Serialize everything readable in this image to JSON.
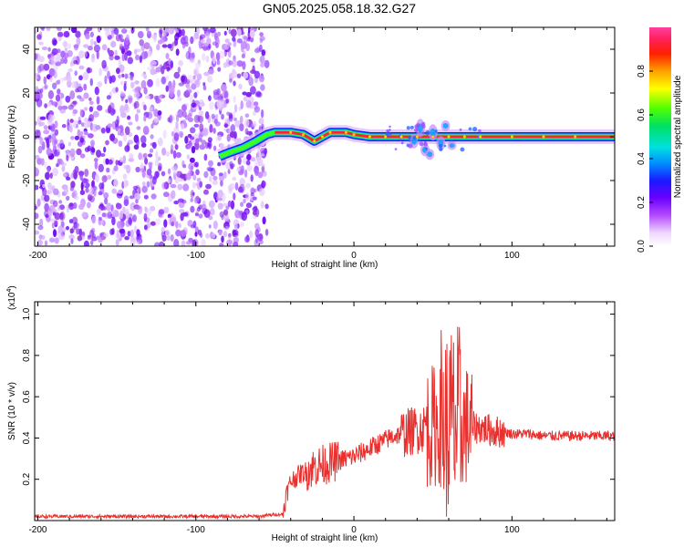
{
  "title": "GN05.2025.058.18.32.G27",
  "chart_data": [
    {
      "type": "heatmap",
      "xlabel": "Height of straight line (km)",
      "ylabel": "Frequency (Hz)",
      "xlim": [
        -202,
        165
      ],
      "ylim": [
        -50,
        50
      ],
      "xticks": [
        -200,
        -100,
        0,
        100
      ],
      "yticks": [
        -40,
        -20,
        0,
        20,
        40
      ],
      "noise_region_x": [
        -202,
        -55
      ],
      "ridge": [
        {
          "x": -85,
          "y": -9
        },
        {
          "x": -78,
          "y": -7
        },
        {
          "x": -70,
          "y": -5
        },
        {
          "x": -62,
          "y": -2
        },
        {
          "x": -55,
          "y": 1
        },
        {
          "x": -50,
          "y": 2
        },
        {
          "x": -40,
          "y": 2
        },
        {
          "x": -32,
          "y": 1
        },
        {
          "x": -25,
          "y": -2
        },
        {
          "x": -20,
          "y": 0
        },
        {
          "x": -15,
          "y": 2
        },
        {
          "x": -5,
          "y": 2
        },
        {
          "x": 0,
          "y": 1
        },
        {
          "x": 10,
          "y": 0
        },
        {
          "x": 20,
          "y": 0
        },
        {
          "x": 30,
          "y": 0
        },
        {
          "x": 40,
          "y": 0
        },
        {
          "x": 50,
          "y": 0
        },
        {
          "x": 60,
          "y": 0
        },
        {
          "x": 70,
          "y": 0
        },
        {
          "x": 80,
          "y": 0
        },
        {
          "x": 100,
          "y": 0
        },
        {
          "x": 120,
          "y": 0
        },
        {
          "x": 140,
          "y": 0
        },
        {
          "x": 165,
          "y": 0
        }
      ],
      "colorbar": {
        "label": "Normalized spectral amplitude",
        "range": [
          0,
          1
        ],
        "ticks": [
          "0.0",
          "0.2",
          "0.4",
          "0.6",
          "0.8"
        ]
      }
    },
    {
      "type": "line",
      "xlabel": "Height of straight line (km)",
      "ylabel": "SNR (10 * v/v)",
      "multiplier": "(x10",
      "multiplier_exp": "4",
      "multiplier_close": ")",
      "xlim": [
        -202,
        165
      ],
      "ylim": [
        0,
        1.06
      ],
      "xticks": [
        -200,
        -100,
        0,
        100
      ],
      "yticks": [
        0.2,
        0.4,
        0.6,
        0.8,
        1.0
      ],
      "line_color": "#e8312e",
      "series": [
        {
          "x": [
            -202,
            -190,
            -180,
            -170,
            -160,
            -150,
            -140,
            -130,
            -120,
            -110,
            -100,
            -90,
            -80,
            -70,
            -60,
            -50,
            -45,
            -43,
            -40,
            -35,
            -30,
            -25,
            -20,
            -15,
            -10,
            -5,
            0,
            5,
            10,
            15,
            20,
            25,
            30,
            35,
            40,
            45,
            50,
            55,
            60,
            65,
            70,
            75,
            80,
            85,
            90,
            95,
            100,
            110,
            120,
            130,
            140,
            150,
            160,
            165
          ],
          "values": [
            0.02,
            0.02,
            0.02,
            0.02,
            0.02,
            0.02,
            0.02,
            0.02,
            0.02,
            0.02,
            0.02,
            0.02,
            0.02,
            0.02,
            0.02,
            0.03,
            0.03,
            0.12,
            0.19,
            0.22,
            0.24,
            0.26,
            0.27,
            0.28,
            0.29,
            0.3,
            0.31,
            0.33,
            0.35,
            0.37,
            0.39,
            0.41,
            0.42,
            0.43,
            0.44,
            0.45,
            0.46,
            0.46,
            0.46,
            0.46,
            0.46,
            0.45,
            0.45,
            0.44,
            0.43,
            0.43,
            0.42,
            0.42,
            0.41,
            0.41,
            0.41,
            0.41,
            0.41,
            0.41
          ]
        }
      ]
    }
  ],
  "colors": {
    "line": "#e8312e"
  }
}
